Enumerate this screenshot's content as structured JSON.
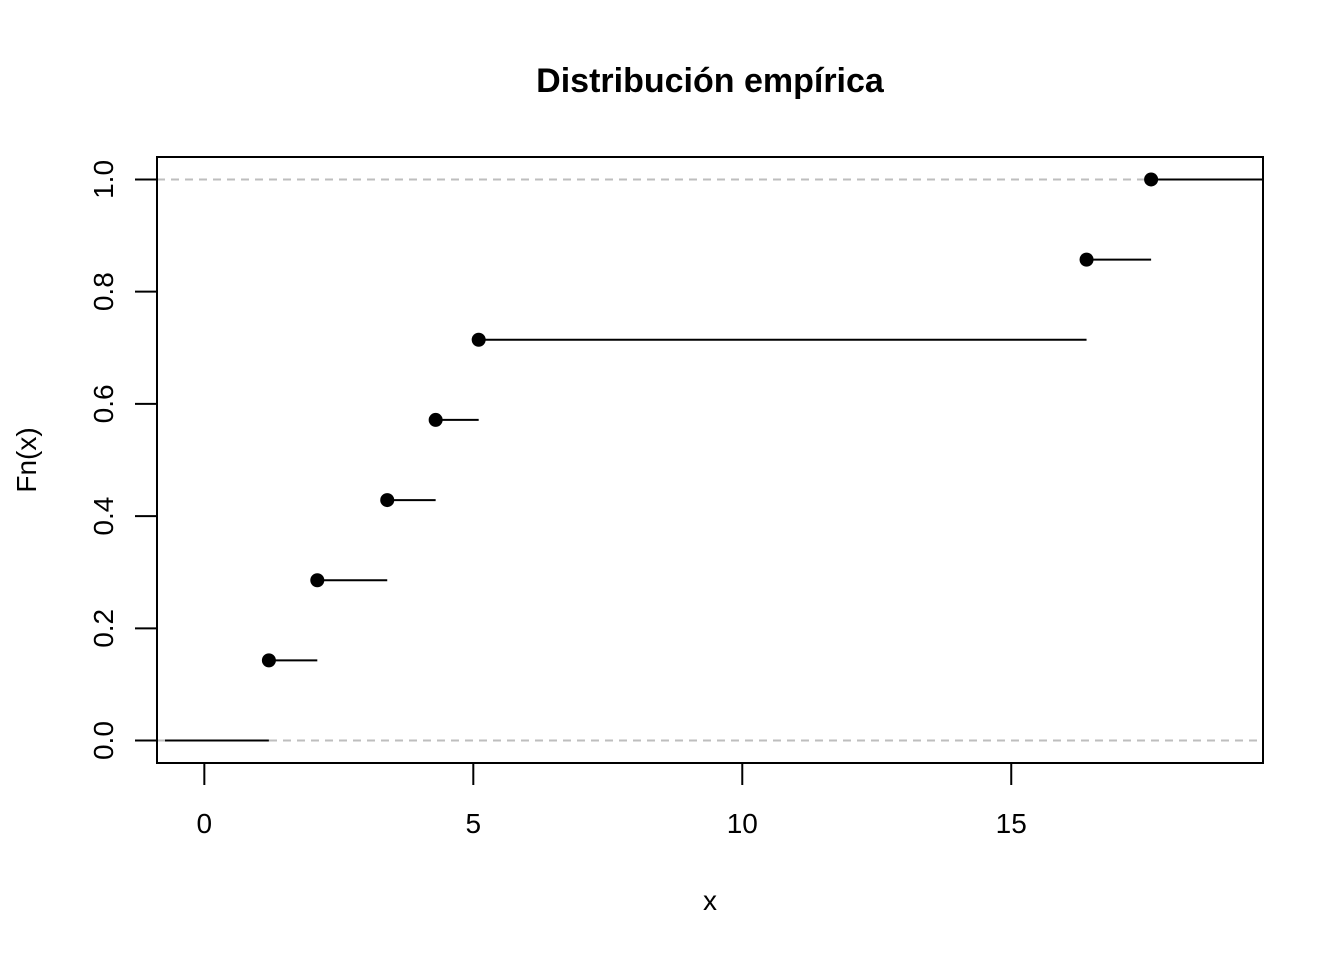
{
  "chart_data": {
    "type": "line",
    "subtype": "step-ecdf",
    "title": "Distribución empírica",
    "xlabel": "x",
    "ylabel": "Fn(x)",
    "xlim": [
      -0.88,
      19.68
    ],
    "ylim": [
      -0.04,
      1.04
    ],
    "xticks": [
      0,
      5,
      10,
      15
    ],
    "yticks": [
      0.0,
      0.2,
      0.4,
      0.6,
      0.8,
      1.0
    ],
    "ytick_labels": [
      "0.0",
      "0.2",
      "0.4",
      "0.6",
      "0.8",
      "1.0"
    ],
    "reference_lines": [
      0,
      1
    ],
    "reference_line_color": "#bebebe",
    "mark_color": "#000000",
    "points": [
      {
        "x": 1.2,
        "y": 0.1429
      },
      {
        "x": 2.1,
        "y": 0.2857
      },
      {
        "x": 3.4,
        "y": 0.4286
      },
      {
        "x": 4.3,
        "y": 0.5714
      },
      {
        "x": 5.1,
        "y": 0.7143
      },
      {
        "x": 16.4,
        "y": 0.8571
      },
      {
        "x": 17.6,
        "y": 1.0
      }
    ]
  }
}
